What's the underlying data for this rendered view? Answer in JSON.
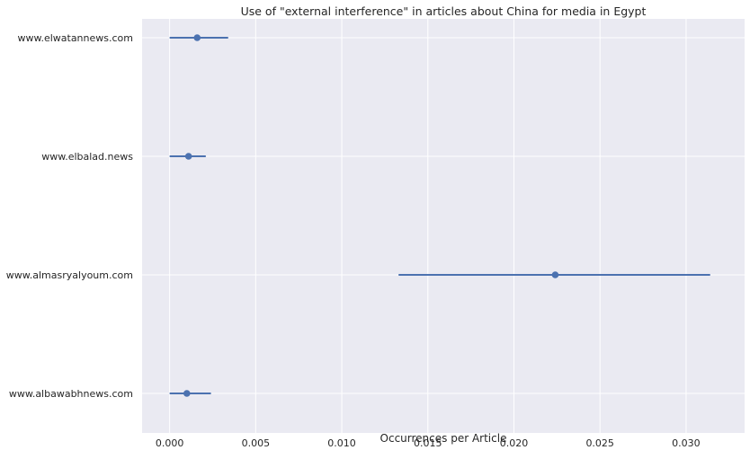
{
  "chart_data": {
    "type": "scatter",
    "title": "Use of \"external interference\" in articles about China for media in Egypt",
    "xlabel": "Occurrences per Article",
    "ylabel": "",
    "xlim": [
      -0.0016,
      0.0334
    ],
    "xticks": [
      "0.000",
      "0.005",
      "0.010",
      "0.015",
      "0.020",
      "0.025",
      "0.030"
    ],
    "xtick_values": [
      0.0,
      0.005,
      0.01,
      0.015,
      0.02,
      0.025,
      0.03
    ],
    "categories": [
      "www.elwatannews.com",
      "www.elbalad.news",
      "www.almasryalyoum.com",
      "www.albawabhnews.com"
    ],
    "values": [
      0.0016,
      0.0011,
      0.0224,
      0.001
    ],
    "error_low": [
      0.0,
      0.0,
      0.0133,
      0.0
    ],
    "error_high": [
      0.0034,
      0.0021,
      0.0314,
      0.0024
    ],
    "grid": true,
    "colors": {
      "background": "#eaeaf2",
      "grid": "#ffffff",
      "series": "#4c72b0",
      "text": "#262626"
    }
  }
}
